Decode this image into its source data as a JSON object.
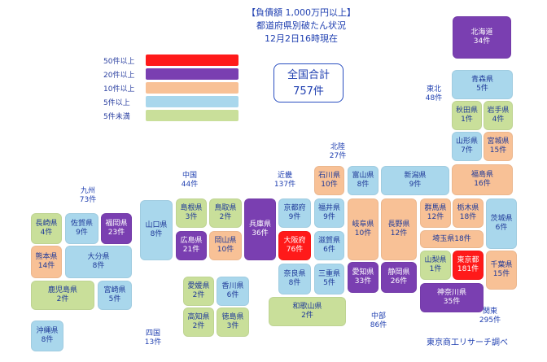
{
  "title": {
    "line1": "【負債額 1,000万円以上】",
    "line2": "都道府県別破たん状況",
    "line3": "12月2日16時現在"
  },
  "total": {
    "label": "全国合計",
    "value": "757件"
  },
  "legend": [
    {
      "label": "50件以上",
      "color": "#ff1a1a"
    },
    {
      "label": "20件以上",
      "color": "#7a3fb1"
    },
    {
      "label": "10件以上",
      "color": "#f8c196"
    },
    {
      "label": "5件以上",
      "color": "#a9d7ec"
    },
    {
      "label": "5件未満",
      "color": "#c9df9a"
    }
  ],
  "regions": {
    "tohoku": {
      "name": "東北",
      "count": "48件"
    },
    "hokuriku": {
      "name": "北陸",
      "count": "27件"
    },
    "chugoku": {
      "name": "中国",
      "count": "44件"
    },
    "kinki": {
      "name": "近畿",
      "count": "137件"
    },
    "kyushu": {
      "name": "九州",
      "count": "73件"
    },
    "shikoku": {
      "name": "四国",
      "count": "13件"
    },
    "chubu": {
      "name": "中部",
      "count": "86件"
    },
    "kanto": {
      "name": "関東",
      "count": "295件"
    }
  },
  "prefectures": {
    "hokkaido": {
      "name": "北海道",
      "count": "34件"
    },
    "aomori": {
      "name": "青森県",
      "count": "5件"
    },
    "akita": {
      "name": "秋田県",
      "count": "1件"
    },
    "iwate": {
      "name": "岩手県",
      "count": "4件"
    },
    "yamagata": {
      "name": "山形県",
      "count": "7件"
    },
    "miyagi": {
      "name": "宮城県",
      "count": "15件"
    },
    "fukushima": {
      "name": "福島県",
      "count": "16件"
    },
    "niigata": {
      "name": "新潟県",
      "count": "9件"
    },
    "ishikawa": {
      "name": "石川県",
      "count": "10件"
    },
    "toyama": {
      "name": "富山県",
      "count": "8件"
    },
    "fukui": {
      "name": "福井県",
      "count": "9件"
    },
    "gunma": {
      "name": "群馬県",
      "count": "12件"
    },
    "tochigi": {
      "name": "栃木県",
      "count": "18件"
    },
    "ibaraki": {
      "name": "茨城県",
      "count": "6件"
    },
    "saitama": {
      "name": "埼玉県18件"
    },
    "nagano": {
      "name": "長野県",
      "count": "12件"
    },
    "gifu": {
      "name": "岐阜県",
      "count": "10件"
    },
    "yamanashi": {
      "name": "山梨県",
      "count": "1件"
    },
    "tokyo": {
      "name": "東京都",
      "count": "181件"
    },
    "chiba": {
      "name": "千葉県",
      "count": "15件"
    },
    "kanagawa": {
      "name": "神奈川県",
      "count": "35件"
    },
    "shizuoka": {
      "name": "静岡県",
      "count": "26件"
    },
    "aichi": {
      "name": "愛知県",
      "count": "33件"
    },
    "mie": {
      "name": "三重県",
      "count": "5件"
    },
    "shiga": {
      "name": "滋賀県",
      "count": "6件"
    },
    "kyoto": {
      "name": "京都府",
      "count": "9件"
    },
    "osaka": {
      "name": "大阪府",
      "count": "76件"
    },
    "nara": {
      "name": "奈良県",
      "count": "8件"
    },
    "wakayama": {
      "name": "和歌山県",
      "count": "2件"
    },
    "hyogo": {
      "name": "兵庫県",
      "count": "36件"
    },
    "tottori": {
      "name": "鳥取県",
      "count": "2件"
    },
    "shimane": {
      "name": "島根県",
      "count": "3件"
    },
    "okayama": {
      "name": "岡山県",
      "count": "10件"
    },
    "hiroshima": {
      "name": "広島県",
      "count": "21件"
    },
    "yamaguchi": {
      "name": "山口県",
      "count": "8件"
    },
    "ehime": {
      "name": "愛媛県",
      "count": "2件"
    },
    "kagawa": {
      "name": "香川県",
      "count": "6件"
    },
    "kochi": {
      "name": "高知県",
      "count": "2件"
    },
    "tokushima": {
      "name": "徳島県",
      "count": "3件"
    },
    "fukuoka": {
      "name": "福岡県",
      "count": "23件"
    },
    "saga": {
      "name": "佐賀県",
      "count": "9件"
    },
    "nagasaki": {
      "name": "長崎県",
      "count": "4件"
    },
    "kumamoto": {
      "name": "熊本県",
      "count": "14件"
    },
    "oita": {
      "name": "大分県",
      "count": "8件"
    },
    "miyazaki": {
      "name": "宮崎県",
      "count": "5件"
    },
    "kagoshima": {
      "name": "鹿児島県",
      "count": "2件"
    },
    "okinawa": {
      "name": "沖縄県",
      "count": "8件"
    }
  },
  "credit": "東京商工リサーチ調べ"
}
